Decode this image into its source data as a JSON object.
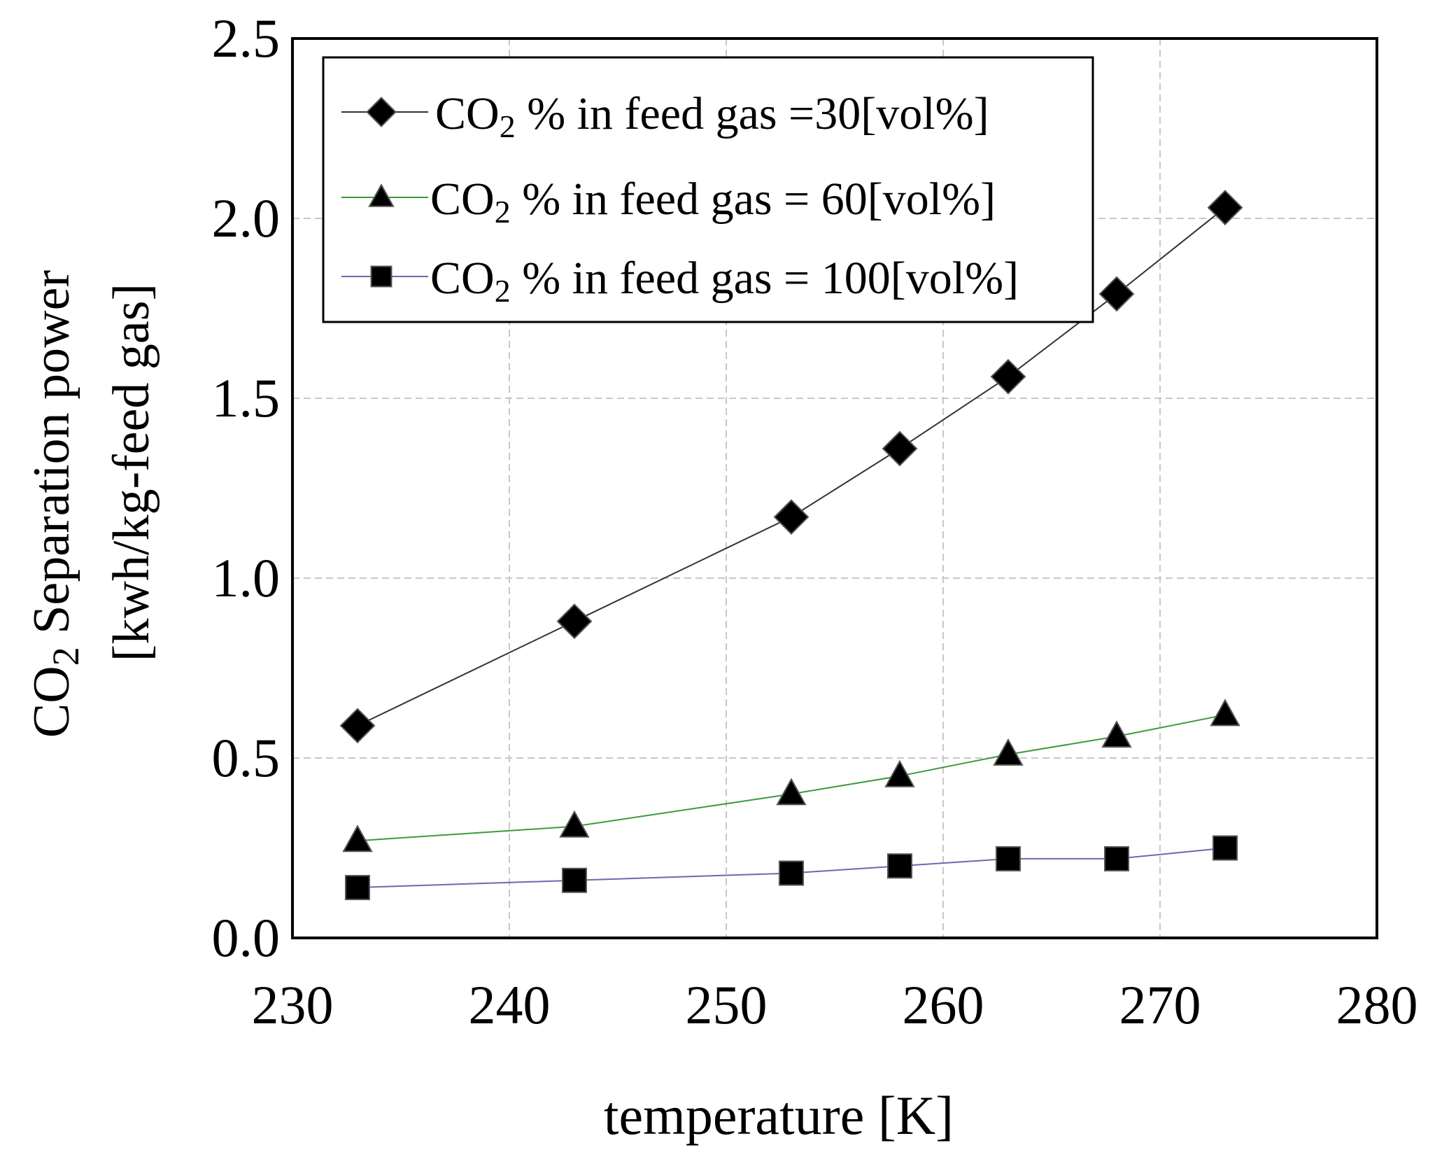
{
  "chart_data": {
    "type": "line",
    "title": "",
    "xlabel": "temperature [K]",
    "ylabel": {
      "line1_prefix": "CO",
      "line1_sub": "2",
      "line1_suffix": " Separation power",
      "line2": "[kwh/kg-feed gas]"
    },
    "xlim": [
      230,
      280
    ],
    "ylim": [
      0.0,
      2.5
    ],
    "x_ticks": [
      230,
      240,
      250,
      260,
      270,
      280
    ],
    "x_tick_labels": [
      "230",
      "240",
      "250",
      "260",
      "270",
      "280"
    ],
    "y_ticks": [
      0.0,
      0.5,
      1.0,
      1.5,
      2.0,
      2.5
    ],
    "y_tick_labels": [
      "0.0",
      "0.5",
      "1.0",
      "1.5",
      "2.0",
      "2.5"
    ],
    "grid": true,
    "legend_position": "top-left",
    "series": [
      {
        "name": "CO2 % in feed gas =30[vol%]",
        "label_prefix": "CO",
        "label_sub": "2",
        "label_suffix": " % in feed gas =30[vol%]",
        "marker": "diamond",
        "line_color": "#333333",
        "x": [
          233,
          243,
          253,
          258,
          263,
          268,
          273
        ],
        "values": [
          0.59,
          0.88,
          1.17,
          1.36,
          1.56,
          1.79,
          2.03
        ]
      },
      {
        "name": "CO2 % in feed gas = 60[vol%]",
        "label_prefix": "CO",
        "label_sub": "2",
        "label_suffix": " % in feed gas = 60[vol%]",
        "marker": "triangle",
        "line_color": "#3c9a3c",
        "x": [
          233,
          243,
          253,
          258,
          263,
          268,
          273
        ],
        "values": [
          0.27,
          0.31,
          0.4,
          0.45,
          0.51,
          0.56,
          0.62
        ]
      },
      {
        "name": "CO2 % in feed gas = 100[vol%]",
        "label_prefix": "CO",
        "label_sub": "2",
        "label_suffix": " % in feed gas = 100[vol%]",
        "marker": "square",
        "line_color": "#6a6ab0",
        "x": [
          233,
          243,
          253,
          258,
          263,
          268,
          273
        ],
        "values": [
          0.14,
          0.16,
          0.18,
          0.2,
          0.22,
          0.22,
          0.25
        ]
      }
    ]
  }
}
